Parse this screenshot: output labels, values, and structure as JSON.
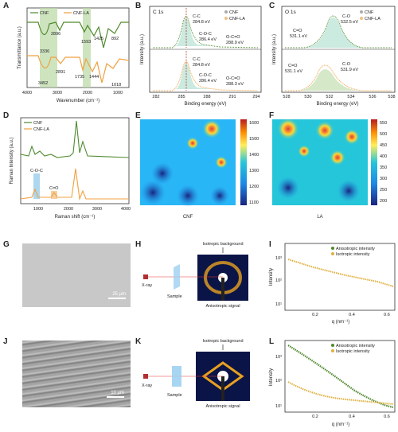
{
  "panels": {
    "A": {
      "label": "A",
      "xlabel": "Wavenumber (cm⁻¹)",
      "ylabel": "Transmittance (a.u.)",
      "legend": [
        "CNF",
        "CNF-LA"
      ],
      "xticks": [
        "4000",
        "3000",
        "2000",
        "1000"
      ],
      "peaks": [
        "2896",
        "1593",
        "1425",
        "892",
        "3336",
        "3452",
        "2891",
        "1735",
        "1444",
        "1018"
      ]
    },
    "B": {
      "label": "B",
      "title": "C 1s",
      "xlabel": "Binding energy (eV)",
      "ylabel": "Intensity (a.u.)",
      "legend": [
        "CNF",
        "CNF-LA"
      ],
      "xticks": [
        "282",
        "285",
        "288",
        "291",
        "294"
      ],
      "top": [
        "C-C",
        "284.8 eV",
        "C-O-C",
        "286.4 eV",
        "O-C=O",
        "288.9 eV"
      ],
      "bottom": [
        "C-C",
        "284.8 eV",
        "C-O-C",
        "286.4 eV",
        "O-C=O",
        "288.3 eV"
      ]
    },
    "C": {
      "label": "C",
      "title": "O 1s",
      "xlabel": "Binding energy (eV)",
      "ylabel": "Intensity (a.u.)",
      "legend": [
        "CNF",
        "CNF-LA"
      ],
      "xticks": [
        "528",
        "530",
        "532",
        "534",
        "536",
        "538"
      ],
      "top": [
        "C-O",
        "532.5 eV",
        "C=O",
        "531.1 eV"
      ],
      "bottom": [
        "C=O",
        "531.1 eV",
        "C-O",
        "531.9 eV"
      ]
    },
    "D": {
      "label": "D",
      "xlabel": "Raman shift (cm⁻¹)",
      "ylabel": "Raman Intensity (a.u.)",
      "legend": [
        "CNF",
        "CNF-LA"
      ],
      "xticks": [
        "1000",
        "2000",
        "3000",
        "4000"
      ],
      "bands": [
        "C-O-C",
        "C=O"
      ]
    },
    "E": {
      "label": "E",
      "caption": "CNF",
      "scale": [
        "1600",
        "1500",
        "1400",
        "1300",
        "1200",
        "1100"
      ]
    },
    "F": {
      "label": "F",
      "caption": "LA",
      "scale": [
        "550",
        "500",
        "450",
        "400",
        "350",
        "300",
        "250",
        "200"
      ]
    },
    "G": {
      "label": "G",
      "scalebar": "25 μm"
    },
    "H": {
      "label": "H",
      "top": "Isotropic background",
      "bottom": "Anisotropic signal",
      "xray": "X-ray",
      "sample": "Sample"
    },
    "I": {
      "label": "I",
      "legend": [
        "Anisotropic intensity",
        "Isotropic intensity"
      ],
      "xlabel": "q (nm⁻¹)",
      "ylabel": "Intensity",
      "xticks": [
        "0.2",
        "0.4",
        "0.6"
      ],
      "yticks": [
        "10³",
        "10²",
        "10¹"
      ]
    },
    "J": {
      "label": "J",
      "scalebar": "10 μm"
    },
    "K": {
      "label": "K",
      "top": "Isotropic background",
      "bottom": "Anisotropic signal",
      "xray": "X-ray",
      "sample": "Sample"
    },
    "L": {
      "label": "L",
      "legend": [
        "Anisotropic intensity",
        "Isotropic intensity"
      ],
      "xlabel": "q (nm⁻¹)",
      "ylabel": "Intensity",
      "xticks": [
        "0.2",
        "0.4",
        "0.6"
      ],
      "yticks": [
        "10³",
        "10²",
        "10¹"
      ]
    }
  },
  "colors": {
    "green": "#4f8a2e",
    "orange": "#f0a040",
    "band": "#b9d9a4",
    "blue": "#5ab0e0"
  }
}
